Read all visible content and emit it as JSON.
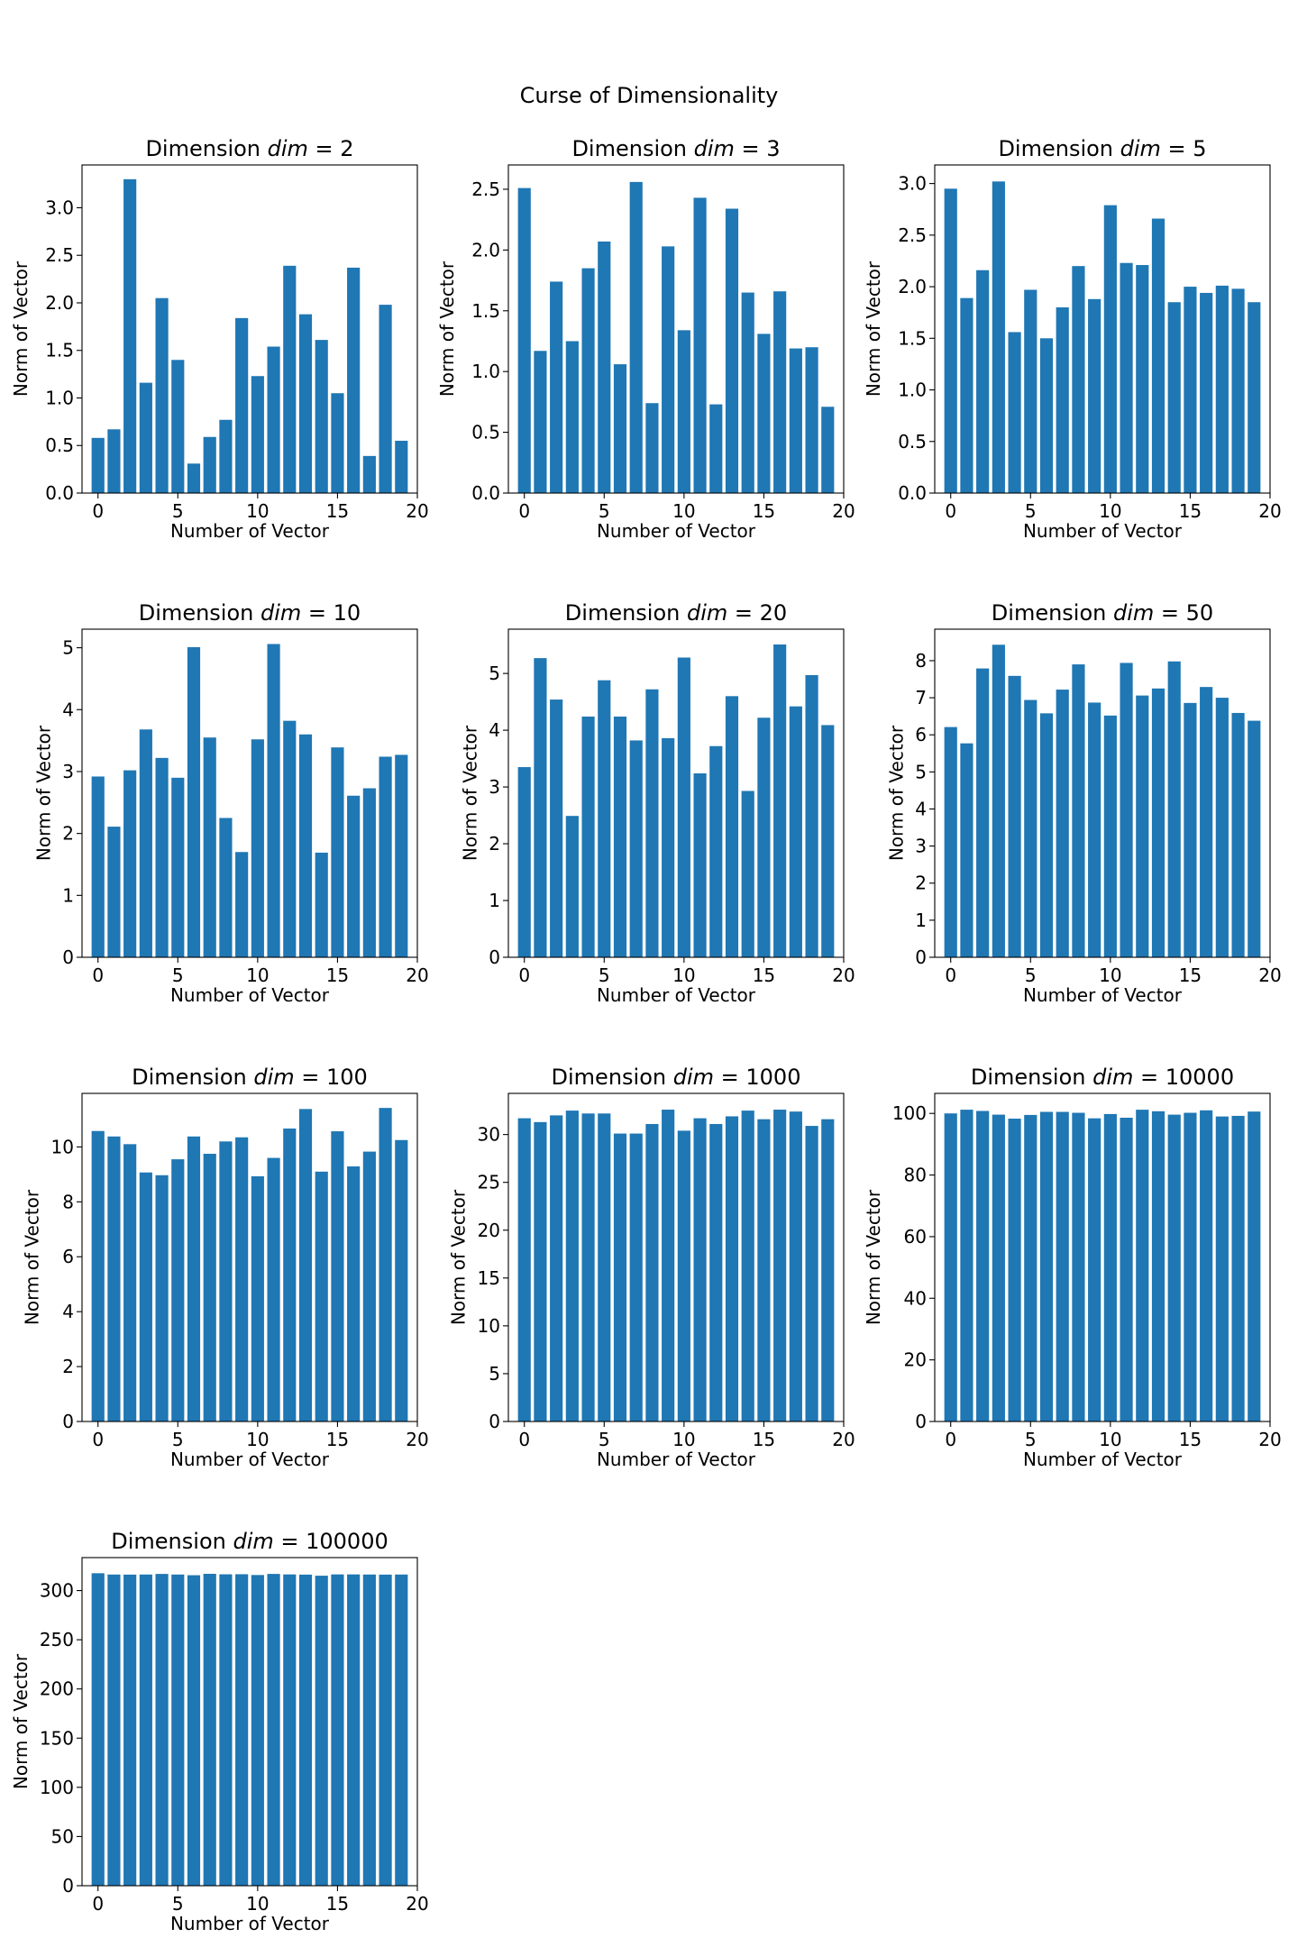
{
  "figure": {
    "suptitle": "Curse of Dimensionality",
    "bar_color": "#1f77b4"
  },
  "chart_data": [
    {
      "type": "bar",
      "title_prefix": "Dimension ",
      "title_var": "dim",
      "title_eq": " = 2",
      "xlabel": "Number of Vector",
      "ylabel": "Norm of Vector",
      "xlim": [
        -1,
        20
      ],
      "ylim": [
        0,
        3.45
      ],
      "xticks": [
        0,
        5,
        10,
        15,
        20
      ],
      "yticks": [
        "0.0",
        "0.5",
        "1.0",
        "1.5",
        "2.0",
        "2.5",
        "3.0"
      ],
      "categories": [
        0,
        1,
        2,
        3,
        4,
        5,
        6,
        7,
        8,
        9,
        10,
        11,
        12,
        13,
        14,
        15,
        16,
        17,
        18,
        19
      ],
      "values": [
        0.58,
        0.67,
        3.3,
        1.16,
        2.05,
        1.4,
        0.31,
        0.59,
        0.77,
        1.84,
        1.23,
        1.54,
        2.39,
        1.88,
        1.61,
        1.05,
        2.37,
        0.39,
        1.98,
        0.55
      ]
    },
    {
      "type": "bar",
      "title_prefix": "Dimension ",
      "title_var": "dim",
      "title_eq": " = 3",
      "xlabel": "Number of Vector",
      "ylabel": "Norm of Vector",
      "xlim": [
        -1,
        20
      ],
      "ylim": [
        0,
        2.7
      ],
      "xticks": [
        0,
        5,
        10,
        15,
        20
      ],
      "yticks": [
        "0.0",
        "0.5",
        "1.0",
        "1.5",
        "2.0",
        "2.5"
      ],
      "categories": [
        0,
        1,
        2,
        3,
        4,
        5,
        6,
        7,
        8,
        9,
        10,
        11,
        12,
        13,
        14,
        15,
        16,
        17,
        18,
        19
      ],
      "values": [
        2.51,
        1.17,
        1.74,
        1.25,
        1.85,
        2.07,
        1.06,
        2.56,
        0.74,
        2.03,
        1.34,
        2.43,
        0.73,
        2.34,
        1.65,
        1.31,
        1.66,
        1.19,
        1.2,
        0.71
      ]
    },
    {
      "type": "bar",
      "title_prefix": "Dimension ",
      "title_var": "dim",
      "title_eq": " = 5",
      "xlabel": "Number of Vector",
      "ylabel": "Norm of Vector",
      "xlim": [
        -1,
        20
      ],
      "ylim": [
        0,
        3.18
      ],
      "xticks": [
        0,
        5,
        10,
        15,
        20
      ],
      "yticks": [
        "0.0",
        "0.5",
        "1.0",
        "1.5",
        "2.0",
        "2.5",
        "3.0"
      ],
      "categories": [
        0,
        1,
        2,
        3,
        4,
        5,
        6,
        7,
        8,
        9,
        10,
        11,
        12,
        13,
        14,
        15,
        16,
        17,
        18,
        19
      ],
      "values": [
        2.95,
        1.89,
        2.16,
        3.02,
        1.56,
        1.97,
        1.5,
        1.8,
        2.2,
        1.88,
        2.79,
        2.23,
        2.21,
        2.66,
        1.85,
        2.0,
        1.94,
        2.01,
        1.98,
        1.85
      ]
    },
    {
      "type": "bar",
      "title_prefix": "Dimension ",
      "title_var": "dim",
      "title_eq": " = 10",
      "xlabel": "Number of Vector",
      "ylabel": "Norm of Vector",
      "xlim": [
        -1,
        20
      ],
      "ylim": [
        0,
        5.3
      ],
      "xticks": [
        0,
        5,
        10,
        15,
        20
      ],
      "yticks": [
        "0",
        "1",
        "2",
        "3",
        "4",
        "5"
      ],
      "categories": [
        0,
        1,
        2,
        3,
        4,
        5,
        6,
        7,
        8,
        9,
        10,
        11,
        12,
        13,
        14,
        15,
        16,
        17,
        18,
        19
      ],
      "values": [
        2.92,
        2.11,
        3.02,
        3.68,
        3.22,
        2.9,
        5.01,
        3.55,
        2.25,
        1.7,
        3.52,
        5.06,
        3.82,
        3.6,
        1.69,
        3.39,
        2.61,
        2.73,
        3.24,
        3.27
      ]
    },
    {
      "type": "bar",
      "title_prefix": "Dimension ",
      "title_var": "dim",
      "title_eq": " = 20",
      "xlabel": "Number of Vector",
      "ylabel": "Norm of Vector",
      "xlim": [
        -1,
        20
      ],
      "ylim": [
        0,
        5.78
      ],
      "xticks": [
        0,
        5,
        10,
        15,
        20
      ],
      "yticks": [
        "0",
        "1",
        "2",
        "3",
        "4",
        "5"
      ],
      "categories": [
        0,
        1,
        2,
        3,
        4,
        5,
        6,
        7,
        8,
        9,
        10,
        11,
        12,
        13,
        14,
        15,
        16,
        17,
        18,
        19
      ],
      "values": [
        3.35,
        5.27,
        4.54,
        2.49,
        4.24,
        4.88,
        4.24,
        3.82,
        4.72,
        3.86,
        5.28,
        3.24,
        3.72,
        4.6,
        2.93,
        4.22,
        5.51,
        4.42,
        4.97,
        4.09
      ]
    },
    {
      "type": "bar",
      "title_prefix": "Dimension ",
      "title_var": "dim",
      "title_eq": " = 50",
      "xlabel": "Number of Vector",
      "ylabel": "Norm of Vector",
      "xlim": [
        -1,
        20
      ],
      "ylim": [
        0,
        8.85
      ],
      "xticks": [
        0,
        5,
        10,
        15,
        20
      ],
      "yticks": [
        "0",
        "1",
        "2",
        "3",
        "4",
        "5",
        "6",
        "7",
        "8"
      ],
      "categories": [
        0,
        1,
        2,
        3,
        4,
        5,
        6,
        7,
        8,
        9,
        10,
        11,
        12,
        13,
        14,
        15,
        16,
        17,
        18,
        19
      ],
      "values": [
        6.21,
        5.77,
        7.79,
        8.43,
        7.59,
        6.94,
        6.58,
        7.22,
        7.9,
        6.87,
        6.52,
        7.94,
        7.06,
        7.25,
        7.98,
        6.86,
        7.29,
        7.0,
        6.59,
        6.38
      ]
    },
    {
      "type": "bar",
      "title_prefix": "Dimension ",
      "title_var": "dim",
      "title_eq": " = 100",
      "xlabel": "Number of Vector",
      "ylabel": "Norm of Vector",
      "xlim": [
        -1,
        20
      ],
      "ylim": [
        0,
        11.95
      ],
      "xticks": [
        0,
        5,
        10,
        15,
        20
      ],
      "yticks": [
        "0",
        "2",
        "4",
        "6",
        "8",
        "10"
      ],
      "categories": [
        0,
        1,
        2,
        3,
        4,
        5,
        6,
        7,
        8,
        9,
        10,
        11,
        12,
        13,
        14,
        15,
        16,
        17,
        18,
        19
      ],
      "values": [
        10.58,
        10.38,
        10.1,
        9.07,
        8.97,
        9.55,
        10.38,
        9.75,
        10.2,
        10.35,
        8.93,
        9.6,
        10.67,
        11.38,
        9.1,
        10.57,
        9.29,
        9.83,
        11.42,
        10.25
      ]
    },
    {
      "type": "bar",
      "title_prefix": "Dimension ",
      "title_var": "dim",
      "title_eq": " = 1000",
      "xlabel": "Number of Vector",
      "ylabel": "Norm of Vector",
      "xlim": [
        -1,
        20
      ],
      "ylim": [
        0,
        34.3
      ],
      "xticks": [
        0,
        5,
        10,
        15,
        20
      ],
      "yticks": [
        "0",
        "5",
        "10",
        "15",
        "20",
        "25",
        "30"
      ],
      "categories": [
        0,
        1,
        2,
        3,
        4,
        5,
        6,
        7,
        8,
        9,
        10,
        11,
        12,
        13,
        14,
        15,
        16,
        17,
        18,
        19
      ],
      "values": [
        31.7,
        31.3,
        32.0,
        32.5,
        32.2,
        32.2,
        30.1,
        30.1,
        31.1,
        32.6,
        30.4,
        31.7,
        31.1,
        31.9,
        32.5,
        31.6,
        32.6,
        32.4,
        30.9,
        31.6
      ]
    },
    {
      "type": "bar",
      "title_prefix": "Dimension ",
      "title_var": "dim",
      "title_eq": " = 10000",
      "xlabel": "Number of Vector",
      "ylabel": "Norm of Vector",
      "xlim": [
        -1,
        20
      ],
      "ylim": [
        0,
        106.5
      ],
      "xticks": [
        0,
        5,
        10,
        15,
        20
      ],
      "yticks": [
        "0",
        "20",
        "40",
        "60",
        "80",
        "100"
      ],
      "categories": [
        0,
        1,
        2,
        3,
        4,
        5,
        6,
        7,
        8,
        9,
        10,
        11,
        12,
        13,
        14,
        15,
        16,
        17,
        18,
        19
      ],
      "values": [
        100.0,
        101.2,
        100.8,
        99.6,
        98.3,
        99.5,
        100.5,
        100.5,
        100.2,
        98.4,
        99.8,
        98.6,
        101.2,
        100.7,
        99.6,
        100.2,
        101.0,
        99.0,
        99.2,
        100.6
      ]
    },
    {
      "type": "bar",
      "title_prefix": "Dimension ",
      "title_var": "dim",
      "title_eq": " = 100000",
      "xlabel": "Number of Vector",
      "ylabel": "Norm of Vector",
      "xlim": [
        -1,
        20
      ],
      "ylim": [
        0,
        333.5
      ],
      "xticks": [
        0,
        5,
        10,
        15,
        20
      ],
      "yticks": [
        "0",
        "50",
        "100",
        "150",
        "200",
        "250",
        "300"
      ],
      "categories": [
        0,
        1,
        2,
        3,
        4,
        5,
        6,
        7,
        8,
        9,
        10,
        11,
        12,
        13,
        14,
        15,
        16,
        17,
        18,
        19
      ],
      "values": [
        317.6,
        316.3,
        316.2,
        316.3,
        316.9,
        316.3,
        315.6,
        317.0,
        316.5,
        316.6,
        315.8,
        316.9,
        316.4,
        316.2,
        315.1,
        316.4,
        316.4,
        316.3,
        316.2,
        316.3
      ]
    }
  ]
}
